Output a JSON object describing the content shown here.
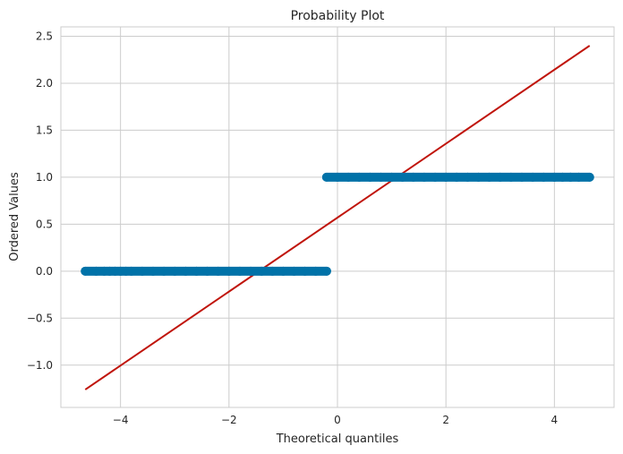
{
  "chart_data": {
    "type": "scatter",
    "title": "Probability Plot",
    "xlabel": "Theoretical quantiles",
    "ylabel": "Ordered Values",
    "xlim": [
      -5.1,
      5.1
    ],
    "ylim": [
      -1.45,
      2.6
    ],
    "x_ticks": [
      -4,
      -2,
      0,
      2,
      4
    ],
    "x_tick_labels": [
      "−4",
      "−2",
      "0",
      "2",
      "4"
    ],
    "y_ticks": [
      -1.0,
      -0.5,
      0.0,
      0.5,
      1.0,
      1.5,
      2.0,
      2.5
    ],
    "y_tick_labels": [
      "−1.0",
      "−0.5",
      "0.0",
      "0.5",
      "1.0",
      "1.5",
      "2.0",
      "2.5"
    ],
    "grid": true,
    "colors": {
      "points": "#0072a8",
      "fit_line": "#c0150c",
      "grid": "#cccccc",
      "background": "#ffffff"
    },
    "series": [
      {
        "type": "scatter",
        "points": [
          [
            -4.65,
            0
          ],
          [
            -4.45,
            0
          ],
          [
            -4.3,
            0
          ],
          [
            -4.2,
            0
          ],
          [
            -4.1,
            0
          ],
          [
            -4.0,
            0
          ],
          [
            -3.9,
            0
          ],
          [
            -3.8,
            0
          ],
          [
            -3.6,
            0
          ],
          [
            -3.4,
            0
          ],
          [
            -3.2,
            0
          ],
          [
            -3.0,
            0
          ],
          [
            -2.8,
            0
          ],
          [
            -2.6,
            0
          ],
          [
            -2.4,
            0
          ],
          [
            -2.2,
            0
          ],
          [
            -2.0,
            0
          ],
          [
            -1.8,
            0
          ],
          [
            -1.6,
            0
          ],
          [
            -1.4,
            0
          ],
          [
            -1.2,
            0
          ],
          [
            -1.0,
            0
          ],
          [
            -0.8,
            0
          ],
          [
            -0.6,
            0
          ],
          [
            -0.4,
            0
          ],
          [
            -0.2,
            0
          ],
          [
            -0.2,
            1
          ],
          [
            0.0,
            1
          ],
          [
            0.2,
            1
          ],
          [
            0.4,
            1
          ],
          [
            0.6,
            1
          ],
          [
            0.8,
            1
          ],
          [
            1.0,
            1
          ],
          [
            1.2,
            1
          ],
          [
            1.4,
            1
          ],
          [
            1.6,
            1
          ],
          [
            1.8,
            1
          ],
          [
            2.0,
            1
          ],
          [
            2.2,
            1
          ],
          [
            2.4,
            1
          ],
          [
            2.6,
            1
          ],
          [
            2.8,
            1
          ],
          [
            3.0,
            1
          ],
          [
            3.2,
            1
          ],
          [
            3.4,
            1
          ],
          [
            3.6,
            1
          ],
          [
            3.8,
            1
          ],
          [
            4.0,
            1
          ],
          [
            4.15,
            1
          ],
          [
            4.3,
            1
          ],
          [
            4.45,
            1
          ],
          [
            4.65,
            1
          ]
        ]
      },
      {
        "type": "line",
        "points": [
          [
            -4.65,
            -1.26
          ],
          [
            4.65,
            2.4
          ]
        ]
      }
    ]
  }
}
